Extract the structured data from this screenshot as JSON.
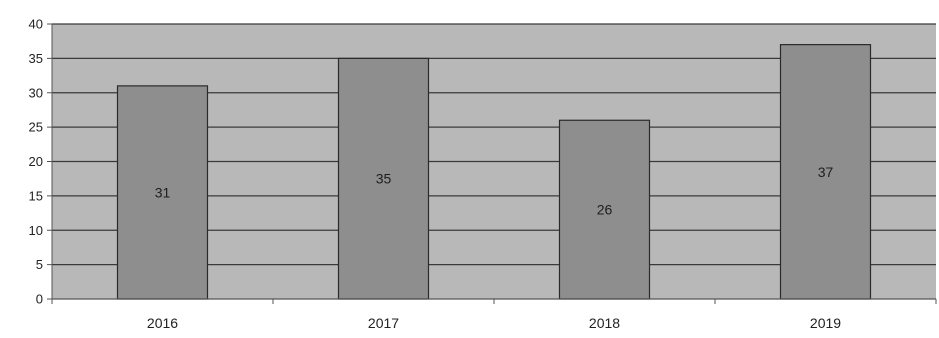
{
  "chart_data": {
    "type": "bar",
    "categories": [
      "2016",
      "2017",
      "2018",
      "2019"
    ],
    "values": [
      31,
      35,
      26,
      37
    ],
    "data_labels": [
      "31",
      "35",
      "26",
      "37"
    ],
    "ylim": [
      0,
      40
    ],
    "yticks": [
      0,
      5,
      10,
      15,
      20,
      25,
      30,
      35,
      40
    ],
    "grid": true,
    "legend": "none",
    "colors": {
      "plot_background": "#b8b8b8",
      "bar_fill": "#8e8e8e",
      "bar_stroke": "#2a2a2a",
      "gridline": "#3a3a3a",
      "axis": "#555555",
      "text": "#222222",
      "bar_label_text": "#1e1e1e"
    }
  }
}
